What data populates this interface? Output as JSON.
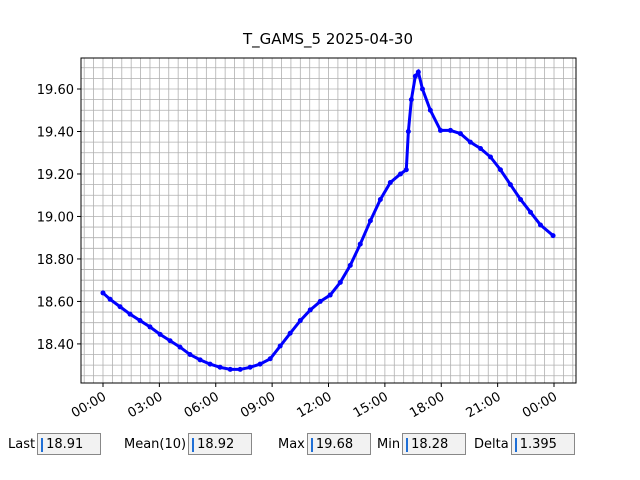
{
  "chart_data": {
    "type": "line",
    "title": "T_GAMS_5 2025-04-30",
    "color": "#0000ff",
    "x": [
      0,
      0.38,
      0.91,
      1.44,
      1.97,
      2.5,
      3.04,
      3.57,
      4.1,
      4.63,
      5.17,
      5.7,
      6.23,
      6.77,
      7.3,
      7.83,
      8.36,
      8.9,
      9.43,
      9.96,
      10.5,
      11.03,
      11.56,
      12.09,
      12.63,
      13.16,
      13.69,
      14.23,
      14.76,
      15.29,
      15.83,
      16.14,
      16.25,
      16.41,
      16.62,
      16.78,
      17.0,
      17.42,
      17.96,
      18.49,
      19.02,
      19.55,
      20.09,
      20.62,
      21.15,
      21.68,
      22.22,
      22.75,
      23.28,
      23.95
    ],
    "values": [
      18.64,
      18.61,
      18.575,
      18.54,
      18.51,
      18.48,
      18.445,
      18.415,
      18.385,
      18.35,
      18.325,
      18.305,
      18.29,
      18.28,
      18.28,
      18.29,
      18.305,
      18.33,
      18.39,
      18.45,
      18.51,
      18.56,
      18.6,
      18.63,
      18.69,
      18.77,
      18.87,
      18.98,
      19.08,
      19.16,
      19.2,
      19.22,
      19.4,
      19.55,
      19.66,
      19.68,
      19.6,
      19.5,
      19.405,
      19.405,
      19.39,
      19.35,
      19.32,
      19.28,
      19.22,
      19.15,
      19.08,
      19.02,
      18.96,
      18.91
    ],
    "xlim": [
      -1.17,
      25.17
    ],
    "ylim": [
      18.216,
      19.746
    ],
    "xticks": [
      {
        "value": 0,
        "label": "00:00"
      },
      {
        "value": 3,
        "label": "03:00"
      },
      {
        "value": 6,
        "label": "06:00"
      },
      {
        "value": 9,
        "label": "09:00"
      },
      {
        "value": 12,
        "label": "12:00"
      },
      {
        "value": 15,
        "label": "15:00"
      },
      {
        "value": 18,
        "label": "18:00"
      },
      {
        "value": 21,
        "label": "21:00"
      },
      {
        "value": 24,
        "label": "00:00"
      }
    ],
    "yticks": [
      {
        "value": 18.4,
        "label": "18.40"
      },
      {
        "value": 18.6,
        "label": "18.60"
      },
      {
        "value": 18.8,
        "label": "18.80"
      },
      {
        "value": 19.0,
        "label": "19.00"
      },
      {
        "value": 19.2,
        "label": "19.20"
      },
      {
        "value": 19.4,
        "label": "19.40"
      },
      {
        "value": 19.6,
        "label": "19.60"
      }
    ],
    "grid": true,
    "x_minor_step": 0.5,
    "y_minor_step": 0.05
  },
  "status": [
    {
      "label": "Last",
      "value": 18.91
    },
    {
      "label": "Mean(10)",
      "value": 18.92
    },
    {
      "label": "Max",
      "value": 19.68
    },
    {
      "label": "Min",
      "value": 18.28
    },
    {
      "label": "Delta",
      "value": 1.395
    }
  ]
}
